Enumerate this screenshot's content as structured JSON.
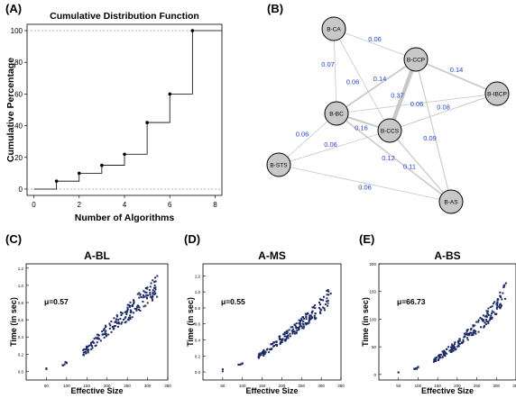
{
  "panel_letters": [
    "(A)",
    "(B)",
    "(C)",
    "(D)",
    "(E)"
  ],
  "chart_data": [
    {
      "id": "A",
      "type": "line",
      "style": "step",
      "title": "Cumulative Distribution Function",
      "xlabel": "Number of Algorithms",
      "ylabel": "Cumulative Percentage",
      "x": [
        0,
        1,
        2,
        3,
        4,
        5,
        6,
        7,
        8
      ],
      "values": [
        0,
        5,
        10,
        15,
        22,
        42,
        60,
        100,
        100
      ],
      "xlim": [
        -0.3,
        8.3
      ],
      "ylim": [
        -4,
        104
      ],
      "xticks": [
        "0",
        "2",
        "4",
        "6",
        "8"
      ],
      "yticks": [
        "0",
        "20",
        "40",
        "60",
        "80",
        "100"
      ],
      "reference_lines": [
        0,
        100
      ],
      "grid": false,
      "color": "#000000"
    },
    {
      "id": "B",
      "type": "network",
      "node_color": "#c8c8c8",
      "edge_color": "#c8c8c8",
      "weight_label_color": "#2244cc",
      "nodes": [
        {
          "id": "B-CA",
          "label": "B-CA"
        },
        {
          "id": "B-CCP",
          "label": "B-CCP"
        },
        {
          "id": "B-IBCP",
          "label": "B-IBCP"
        },
        {
          "id": "B-BC",
          "label": "B-BC"
        },
        {
          "id": "B-CCS",
          "label": "B-CCS"
        },
        {
          "id": "B-STS",
          "label": "B-STS"
        },
        {
          "id": "B-AS",
          "label": "B-AS"
        }
      ],
      "edges": [
        {
          "source": "B-CA",
          "target": "B-CCP",
          "weight": "0.06"
        },
        {
          "source": "B-CA",
          "target": "B-BC",
          "weight": "0.07"
        },
        {
          "source": "B-CA",
          "target": "B-CCS",
          "weight": "0.06"
        },
        {
          "source": "B-CCP",
          "target": "B-IBCP",
          "weight": "0.14"
        },
        {
          "source": "B-CCP",
          "target": "B-BC",
          "weight": "0.14"
        },
        {
          "source": "B-CCP",
          "target": "B-CCS",
          "weight": "0.37"
        },
        {
          "source": "B-CCP",
          "target": "B-AS",
          "weight": "0.09"
        },
        {
          "source": "B-BC",
          "target": "B-IBCP",
          "weight": "0.06"
        },
        {
          "source": "B-CCS",
          "target": "B-IBCP",
          "weight": "0.08"
        },
        {
          "source": "B-BC",
          "target": "B-CCS",
          "weight": "0.16"
        },
        {
          "source": "B-BC",
          "target": "B-STS",
          "weight": "0.06"
        },
        {
          "source": "B-CCS",
          "target": "B-STS",
          "weight": "0.06"
        },
        {
          "source": "B-CCS",
          "target": "B-AS",
          "weight": "0.11"
        },
        {
          "source": "B-BC",
          "target": "B-AS",
          "weight": "0.12"
        },
        {
          "source": "B-STS",
          "target": "B-AS",
          "weight": "0.06"
        }
      ]
    },
    {
      "id": "C",
      "type": "scatter",
      "title": "A-BL",
      "xlabel": "Effective Size",
      "ylabel": "Time (in sec)",
      "annotation": "μ=0.57",
      "xlim": [
        0,
        350
      ],
      "ylim": [
        -0.1,
        1.25
      ],
      "xticks": [
        "50",
        "100",
        "150",
        "200",
        "250",
        "300",
        "350"
      ],
      "yticks": [
        "0.0",
        "0.2",
        "0.4",
        "0.6",
        "0.8",
        "1.0",
        "1.2"
      ],
      "point_color": "#1c2a66",
      "trend": {
        "x": [
          50,
          90,
          150,
          200,
          250,
          300,
          320
        ],
        "y": [
          0.02,
          0.08,
          0.25,
          0.48,
          0.68,
          0.9,
          0.98
        ],
        "spread": 0.1
      }
    },
    {
      "id": "D",
      "type": "scatter",
      "title": "A-MS",
      "xlabel": "Effective Size",
      "ylabel": "Time (in sec)",
      "annotation": "μ=0.55",
      "xlim": [
        0,
        350
      ],
      "ylim": [
        -0.1,
        1.35
      ],
      "xticks": [
        "50",
        "100",
        "150",
        "200",
        "250",
        "300",
        "350"
      ],
      "yticks": [
        "0.0",
        "0.2",
        "0.4",
        "0.6",
        "0.8",
        "1.0",
        "1.2"
      ],
      "point_color": "#1c2a66",
      "trend": {
        "x": [
          50,
          90,
          150,
          200,
          250,
          300,
          320
        ],
        "y": [
          0.02,
          0.08,
          0.22,
          0.42,
          0.6,
          0.82,
          0.95
        ],
        "spread": 0.08
      }
    },
    {
      "id": "E",
      "type": "scatter",
      "title": "A-BS",
      "xlabel": "Effective Size",
      "ylabel": "Time (in sec)",
      "annotation": "μ=66.73",
      "xlim": [
        0,
        350
      ],
      "ylim": [
        -10,
        200
      ],
      "xticks": [
        "50",
        "100",
        "150",
        "200",
        "250",
        "300",
        "350"
      ],
      "yticks": [
        "0",
        "50",
        "100",
        "150",
        "200"
      ],
      "point_color": "#1c2a66",
      "trend": {
        "x": [
          50,
          90,
          150,
          200,
          250,
          300,
          320
        ],
        "y": [
          3,
          8,
          30,
          55,
          85,
          120,
          150
        ],
        "spread": 12
      }
    }
  ]
}
